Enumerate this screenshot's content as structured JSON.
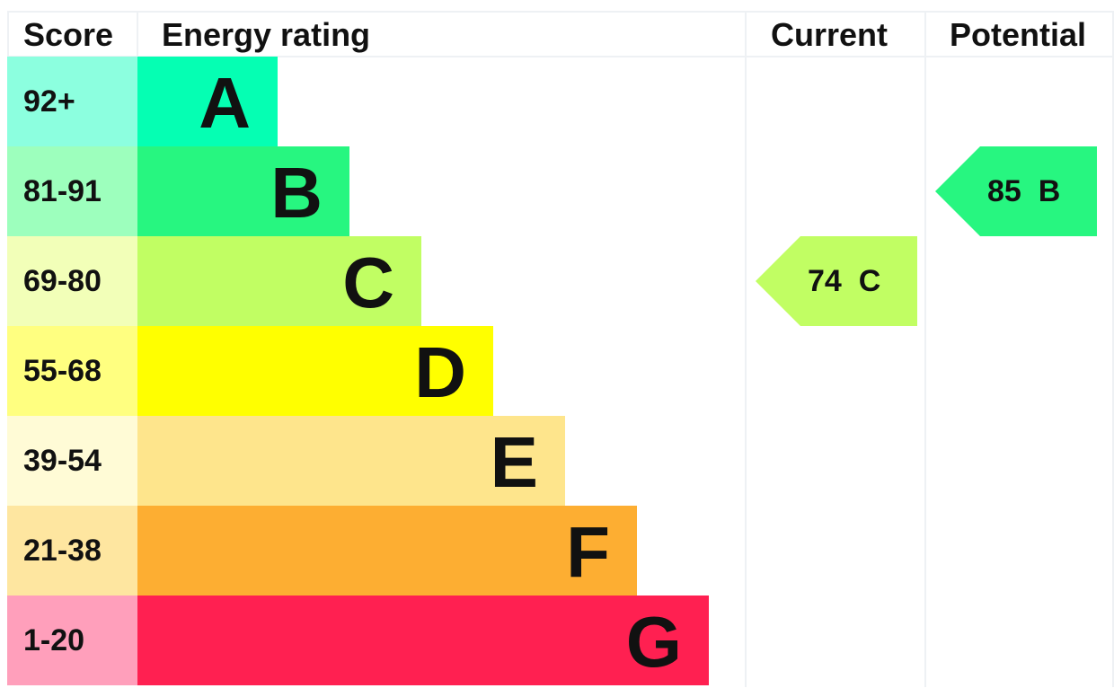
{
  "chart_data": {
    "type": "bar",
    "headers": {
      "score": "Score",
      "rating": "Energy rating",
      "current": "Current",
      "potential": "Potential"
    },
    "bands": [
      {
        "letter": "A",
        "range": "92+",
        "color": "#05ffb3",
        "score_color": "#8cffdf"
      },
      {
        "letter": "B",
        "range": "81-91",
        "color": "#27f680",
        "score_color": "#9dffbd"
      },
      {
        "letter": "C",
        "range": "69-80",
        "color": "#c1fe63",
        "score_color": "#f2ffb8"
      },
      {
        "letter": "D",
        "range": "55-68",
        "color": "#ffff00",
        "score_color": "#ffff80"
      },
      {
        "letter": "E",
        "range": "39-54",
        "color": "#fee58c",
        "score_color": "#fffbd6"
      },
      {
        "letter": "F",
        "range": "21-38",
        "color": "#fdae32",
        "score_color": "#fee6a0"
      },
      {
        "letter": "G",
        "range": "1-20",
        "color": "#ff2051",
        "score_color": "#ff9fbb"
      }
    ],
    "current": {
      "value": 74,
      "band": "C",
      "label": "74  C"
    },
    "potential": {
      "value": 85,
      "band": "B",
      "label": "85  B"
    }
  }
}
